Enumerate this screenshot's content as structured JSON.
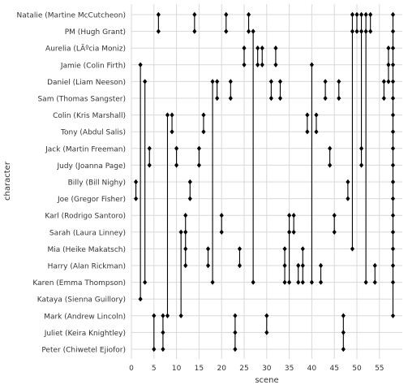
{
  "chart_data": {
    "type": "scatter",
    "title": "",
    "xlabel": "scene",
    "ylabel": "character",
    "xlim": [
      0,
      59
    ],
    "x_ticks": [
      0,
      5,
      10,
      15,
      20,
      25,
      30,
      35,
      40,
      45,
      50,
      55
    ],
    "grid": true,
    "marker": "diamond",
    "marker_color": "#000000",
    "categories": [
      "Natalie (Martine McCutcheon)",
      "PM (Hugh Grant)",
      "Aurelia (LÃºcia Moniz)",
      "Jamie (Colin Firth)",
      "Daniel (Liam Neeson)",
      "Sam (Thomas Sangster)",
      "Colin (Kris Marshall)",
      "Tony (Abdul Salis)",
      "Jack (Martin Freeman)",
      "Judy (Joanna Page)",
      "Billy (Bill Nighy)",
      "Joe (Gregor Fisher)",
      "Karl (Rodrigo Santoro)",
      "Sarah (Laura Linney)",
      "Mia (Heike Makatsch)",
      "Harry (Alan Rickman)",
      "Karen (Emma Thompson)",
      "Kataya (Sienna Guillory)",
      "Mark (Andrew Lincoln)",
      "Juliet (Keira Knightley)",
      "Peter (Chiwetel Ejiofor)"
    ],
    "scenes": [
      {
        "x": 1,
        "characters": [
          "Billy (Bill Nighy)",
          "Joe (Gregor Fisher)"
        ]
      },
      {
        "x": 2,
        "characters": [
          "Jamie (Colin Firth)",
          "Kataya (Sienna Guillory)"
        ]
      },
      {
        "x": 3,
        "characters": [
          "Daniel (Liam Neeson)",
          "Karen (Emma Thompson)"
        ]
      },
      {
        "x": 4,
        "characters": [
          "Jack (Martin Freeman)",
          "Judy (Joanna Page)"
        ]
      },
      {
        "x": 5,
        "characters": [
          "Mark (Andrew Lincoln)",
          "Peter (Chiwetel Ejiofor)"
        ]
      },
      {
        "x": 6,
        "characters": [
          "Natalie (Martine McCutcheon)",
          "PM (Hugh Grant)"
        ]
      },
      {
        "x": 7,
        "characters": [
          "Mark (Andrew Lincoln)",
          "Juliet (Keira Knightley)",
          "Peter (Chiwetel Ejiofor)"
        ]
      },
      {
        "x": 8,
        "characters": [
          "Colin (Kris Marshall)",
          "Mark (Andrew Lincoln)"
        ]
      },
      {
        "x": 9,
        "characters": [
          "Colin (Kris Marshall)",
          "Tony (Abdul Salis)"
        ]
      },
      {
        "x": 10,
        "characters": [
          "Jack (Martin Freeman)",
          "Judy (Joanna Page)"
        ]
      },
      {
        "x": 11,
        "characters": [
          "Sarah (Laura Linney)",
          "Mark (Andrew Lincoln)"
        ]
      },
      {
        "x": 12,
        "characters": [
          "Karl (Rodrigo Santoro)",
          "Sarah (Laura Linney)",
          "Mia (Heike Makatsch)",
          "Harry (Alan Rickman)"
        ]
      },
      {
        "x": 13,
        "characters": [
          "Billy (Bill Nighy)",
          "Joe (Gregor Fisher)"
        ]
      },
      {
        "x": 14,
        "characters": [
          "Natalie (Martine McCutcheon)",
          "PM (Hugh Grant)"
        ]
      },
      {
        "x": 15,
        "characters": [
          "Jack (Martin Freeman)",
          "Judy (Joanna Page)"
        ]
      },
      {
        "x": 16,
        "characters": [
          "Colin (Kris Marshall)",
          "Tony (Abdul Salis)"
        ]
      },
      {
        "x": 17,
        "characters": [
          "Mia (Heike Makatsch)",
          "Harry (Alan Rickman)"
        ]
      },
      {
        "x": 18,
        "characters": [
          "Daniel (Liam Neeson)",
          "Karen (Emma Thompson)"
        ]
      },
      {
        "x": 19,
        "characters": [
          "Daniel (Liam Neeson)",
          "Sam (Thomas Sangster)"
        ]
      },
      {
        "x": 20,
        "characters": [
          "Karl (Rodrigo Santoro)",
          "Sarah (Laura Linney)"
        ]
      },
      {
        "x": 21,
        "characters": [
          "Natalie (Martine McCutcheon)",
          "PM (Hugh Grant)"
        ]
      },
      {
        "x": 22,
        "characters": [
          "Daniel (Liam Neeson)",
          "Sam (Thomas Sangster)"
        ]
      },
      {
        "x": 23,
        "characters": [
          "Mark (Andrew Lincoln)",
          "Juliet (Keira Knightley)",
          "Peter (Chiwetel Ejiofor)"
        ]
      },
      {
        "x": 24,
        "characters": [
          "Mia (Heike Makatsch)",
          "Harry (Alan Rickman)"
        ]
      },
      {
        "x": 25,
        "characters": [
          "Aurelia (LÃºcia Moniz)",
          "Jamie (Colin Firth)"
        ]
      },
      {
        "x": 26,
        "characters": [
          "Natalie (Martine McCutcheon)",
          "PM (Hugh Grant)"
        ]
      },
      {
        "x": 27,
        "characters": [
          "PM (Hugh Grant)",
          "Karen (Emma Thompson)"
        ]
      },
      {
        "x": 28,
        "characters": [
          "Aurelia (LÃºcia Moniz)",
          "Jamie (Colin Firth)"
        ]
      },
      {
        "x": 29,
        "characters": [
          "Aurelia (LÃºcia Moniz)",
          "Jamie (Colin Firth)"
        ]
      },
      {
        "x": 30,
        "characters": [
          "Juliet (Keira Knightley)",
          "Mark (Andrew Lincoln)"
        ]
      },
      {
        "x": 31,
        "characters": [
          "Daniel (Liam Neeson)",
          "Sam (Thomas Sangster)"
        ]
      },
      {
        "x": 32,
        "characters": [
          "Aurelia (LÃºcia Moniz)",
          "Jamie (Colin Firth)"
        ]
      },
      {
        "x": 33,
        "characters": [
          "Daniel (Liam Neeson)",
          "Sam (Thomas Sangster)"
        ]
      },
      {
        "x": 34,
        "characters": [
          "Mia (Heike Makatsch)",
          "Harry (Alan Rickman)",
          "Karen (Emma Thompson)"
        ]
      },
      {
        "x": 35,
        "characters": [
          "Karl (Rodrigo Santoro)",
          "Sarah (Laura Linney)",
          "Karen (Emma Thompson)"
        ]
      },
      {
        "x": 36,
        "characters": [
          "Karl (Rodrigo Santoro)",
          "Sarah (Laura Linney)"
        ]
      },
      {
        "x": 37,
        "characters": [
          "Harry (Alan Rickman)",
          "Karen (Emma Thompson)"
        ]
      },
      {
        "x": 38,
        "characters": [
          "Mia (Heike Makatsch)",
          "Harry (Alan Rickman)",
          "Karen (Emma Thompson)"
        ]
      },
      {
        "x": 39,
        "characters": [
          "Colin (Kris Marshall)",
          "Tony (Abdul Salis)"
        ]
      },
      {
        "x": 40,
        "characters": [
          "Jamie (Colin Firth)",
          "Karen (Emma Thompson)"
        ]
      },
      {
        "x": 41,
        "characters": [
          "Colin (Kris Marshall)",
          "Tony (Abdul Salis)"
        ]
      },
      {
        "x": 42,
        "characters": [
          "Harry (Alan Rickman)",
          "Karen (Emma Thompson)"
        ]
      },
      {
        "x": 43,
        "characters": [
          "Daniel (Liam Neeson)",
          "Sam (Thomas Sangster)"
        ]
      },
      {
        "x": 44,
        "characters": [
          "Jack (Martin Freeman)",
          "Judy (Joanna Page)"
        ]
      },
      {
        "x": 45,
        "characters": [
          "Karl (Rodrigo Santoro)",
          "Sarah (Laura Linney)"
        ]
      },
      {
        "x": 46,
        "characters": [
          "Daniel (Liam Neeson)",
          "Sam (Thomas Sangster)"
        ]
      },
      {
        "x": 47,
        "characters": [
          "Mark (Andrew Lincoln)",
          "Juliet (Keira Knightley)",
          "Peter (Chiwetel Ejiofor)"
        ]
      },
      {
        "x": 48,
        "characters": [
          "Billy (Bill Nighy)",
          "Joe (Gregor Fisher)"
        ]
      },
      {
        "x": 49,
        "characters": [
          "Natalie (Martine McCutcheon)",
          "PM (Hugh Grant)",
          "Mia (Heike Makatsch)"
        ]
      },
      {
        "x": 50,
        "characters": [
          "Natalie (Martine McCutcheon)",
          "PM (Hugh Grant)"
        ]
      },
      {
        "x": 51,
        "characters": [
          "Natalie (Martine McCutcheon)",
          "PM (Hugh Grant)",
          "Jack (Martin Freeman)",
          "Judy (Joanna Page)"
        ]
      },
      {
        "x": 52,
        "characters": [
          "Natalie (Martine McCutcheon)",
          "PM (Hugh Grant)",
          "Karen (Emma Thompson)"
        ]
      },
      {
        "x": 53,
        "characters": [
          "Natalie (Martine McCutcheon)",
          "PM (Hugh Grant)"
        ]
      },
      {
        "x": 54,
        "characters": [
          "Harry (Alan Rickman)",
          "Karen (Emma Thompson)"
        ]
      },
      {
        "x": 56,
        "characters": [
          "Daniel (Liam Neeson)",
          "Sam (Thomas Sangster)"
        ]
      },
      {
        "x": 57,
        "characters": [
          "Aurelia (LÃºcia Moniz)",
          "Jamie (Colin Firth)",
          "Daniel (Liam Neeson)"
        ]
      },
      {
        "x": 58,
        "characters": [
          "Aurelia (LÃºcia Moniz)",
          "Jamie (Colin Firth)",
          "Natalie (Martine McCutcheon)",
          "PM (Hugh Grant)",
          "Daniel (Liam Neeson)",
          "Sam (Thomas Sangster)",
          "Colin (Kris Marshall)",
          "Tony (Abdul Salis)",
          "Jack (Martin Freeman)",
          "Judy (Joanna Page)",
          "Billy (Bill Nighy)",
          "Joe (Gregor Fisher)",
          "Karl (Rodrigo Santoro)",
          "Sarah (Laura Linney)",
          "Mia (Heike Makatsch)",
          "Harry (Alan Rickman)",
          "Karen (Emma Thompson)",
          "Mark (Andrew Lincoln)"
        ]
      }
    ]
  }
}
